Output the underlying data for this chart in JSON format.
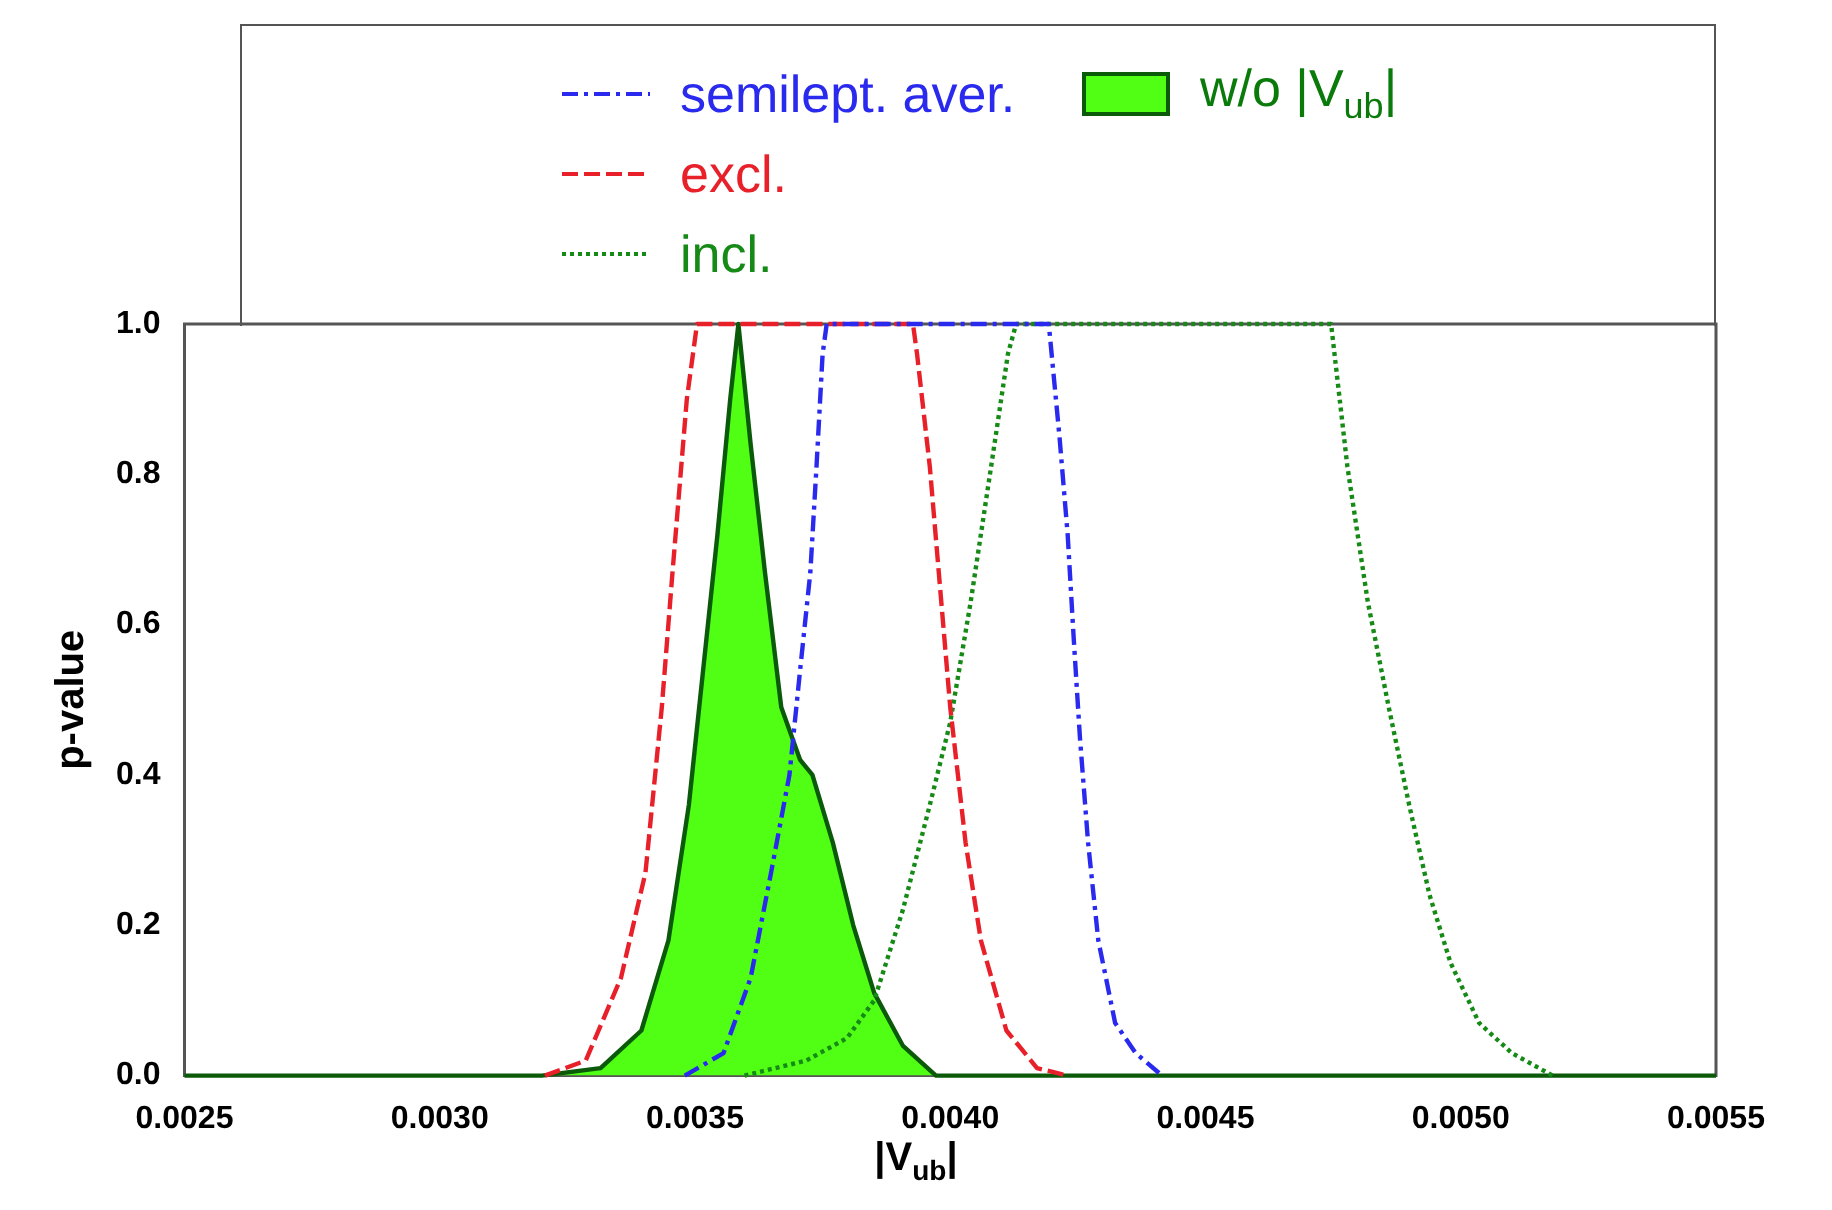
{
  "chart_data": {
    "type": "line",
    "xlabel": "|V$_{ub}$|",
    "ylabel": "p-value",
    "legend": "top",
    "grid": false,
    "marker": "none",
    "xlim": [
      0.0025,
      0.0055
    ],
    "xticks": [
      0.0025,
      {
        "value": 0.003,
        "label": "0.0030"
      },
      0.0035,
      {
        "value": 0.004,
        "label": "0.0040"
      },
      0.0045,
      {
        "value": 0.005,
        "label": "0.0050"
      },
      0.0055
    ],
    "ylim": [
      0,
      1
    ],
    "yticks": [
      {
        "value": 0,
        "label": "0.0"
      },
      0.2,
      0.4,
      0.6,
      0.8,
      {
        "value": 1,
        "label": "1.0"
      }
    ],
    "series": [
      {
        "name": "semilept. aver.",
        "color": "#2a2aee",
        "line_style": "dashdot",
        "x": [
          0.00348,
          0.003556,
          0.003609,
          0.003649,
          0.003685,
          0.003706,
          0.003726,
          0.003738,
          0.00375,
          0.003758,
          0.004193,
          0.004214,
          0.00423,
          0.004242,
          0.004254,
          0.00427,
          0.00429,
          0.004323,
          0.004363,
          0.004415
        ],
        "values": [
          0,
          0.03,
          0.13,
          0.27,
          0.4,
          0.54,
          0.67,
          0.81,
          0.96,
          1,
          1,
          0.85,
          0.72,
          0.58,
          0.45,
          0.31,
          0.18,
          0.07,
          0.03,
          0
        ]
      },
      {
        "name": "excl.",
        "color": "#e8202a",
        "line_style": "dashed",
        "x": [
          0.003206,
          0.003286,
          0.003355,
          0.003403,
          0.003435,
          0.003456,
          0.003484,
          0.003504,
          0.003927,
          0.003935,
          0.00396,
          0.00398,
          0.004,
          0.00403,
          0.00406,
          0.00411,
          0.00417,
          0.00423
        ],
        "values": [
          0,
          0.02,
          0.13,
          0.27,
          0.49,
          0.67,
          0.9,
          1,
          1,
          0.96,
          0.81,
          0.65,
          0.49,
          0.31,
          0.18,
          0.06,
          0.01,
          0
        ]
      },
      {
        "name": "incl.",
        "color": "#168a16",
        "line_style": "dotted",
        "x": [
          0.003597,
          0.003718,
          0.003798,
          0.003851,
          0.003907,
          0.00396,
          0.004,
          0.00404,
          0.00408,
          0.004113,
          0.004129,
          0.004746,
          0.004778,
          0.004818,
          0.004859,
          0.004899,
          0.004939,
          0.00498,
          0.005036,
          0.0051,
          0.00518
        ],
        "values": [
          0,
          0.02,
          0.05,
          0.1,
          0.22,
          0.36,
          0.47,
          0.63,
          0.81,
          0.96,
          1,
          1,
          0.81,
          0.63,
          0.49,
          0.36,
          0.24,
          0.15,
          0.07,
          0.03,
          0
        ]
      },
      {
        "name": "w/o |V$_{ub}$|",
        "type": "area",
        "color": "#50ff14",
        "line_style": "solid",
        "x": [
          0.0025,
          0.0032,
          0.003315,
          0.003395,
          0.003448,
          0.003488,
          0.003516,
          0.003544,
          0.003569,
          0.003585,
          0.003609,
          0.003637,
          0.003669,
          0.003706,
          0.00373,
          0.00377,
          0.00381,
          0.003851,
          0.003907,
          0.003972,
          0.004,
          0.0055
        ],
        "values": [
          0,
          0,
          0.01,
          0.06,
          0.18,
          0.36,
          0.54,
          0.72,
          0.9,
          1,
          0.84,
          0.67,
          0.49,
          0.42,
          0.4,
          0.31,
          0.2,
          0.11,
          0.04,
          0,
          0,
          0
        ]
      }
    ]
  }
}
